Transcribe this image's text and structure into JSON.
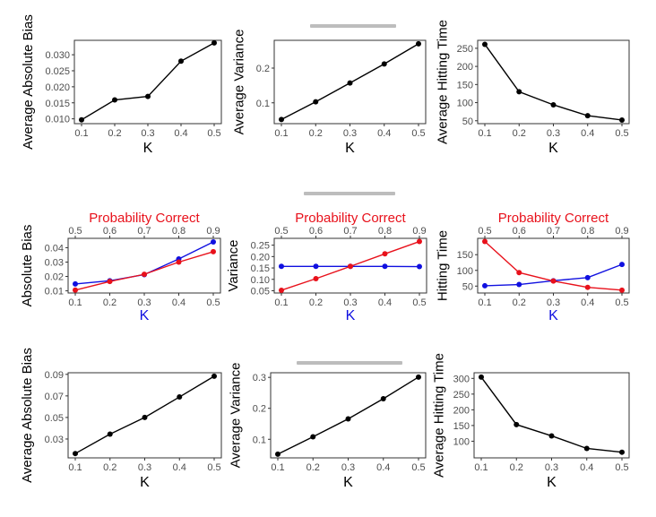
{
  "colors": {
    "black": "#000000",
    "red": "#e8111b",
    "blue": "#1010e0",
    "tick": "#4d4d4d",
    "frame": "#333333"
  },
  "chart_data": [
    {
      "id": "r1c1",
      "type": "line",
      "xlabel": "K",
      "ylabel": "Average Absolute Bias",
      "x": [
        0.1,
        0.2,
        0.3,
        0.4,
        0.5
      ],
      "xlim": [
        0.1,
        0.5
      ],
      "ylim": [
        0.0085,
        0.0345
      ],
      "yticks": [
        0.01,
        0.015,
        0.02,
        0.025,
        0.03
      ],
      "yticklabels": [
        "0.010",
        "0.015",
        "0.020",
        "0.025",
        "0.030"
      ],
      "series": [
        {
          "color": "#000000",
          "values": [
            0.0097,
            0.0159,
            0.017,
            0.028,
            0.0337
          ]
        }
      ]
    },
    {
      "id": "r1c2",
      "type": "line",
      "xlabel": "K",
      "ylabel": "Average Variance",
      "x": [
        0.1,
        0.2,
        0.3,
        0.4,
        0.5
      ],
      "xlim": [
        0.1,
        0.5
      ],
      "ylim": [
        0.04,
        0.28
      ],
      "yticks": [
        0.1,
        0.2
      ],
      "yticklabels": [
        "0.1",
        "0.2"
      ],
      "series": [
        {
          "color": "#000000",
          "values": [
            0.052,
            0.103,
            0.157,
            0.212,
            0.27
          ]
        }
      ]
    },
    {
      "id": "r1c3",
      "type": "line",
      "xlabel": "K",
      "ylabel": "Average Hitting Time",
      "x": [
        0.1,
        0.2,
        0.3,
        0.4,
        0.5
      ],
      "xlim": [
        0.1,
        0.5
      ],
      "ylim": [
        42,
        272
      ],
      "yticks": [
        50,
        100,
        150,
        200,
        250
      ],
      "yticklabels": [
        "50",
        "100",
        "150",
        "200",
        "250"
      ],
      "series": [
        {
          "color": "#000000",
          "values": [
            261,
            130,
            94,
            64,
            52
          ]
        }
      ]
    },
    {
      "id": "r2c1",
      "type": "line",
      "xlabel": "K",
      "ylabel": "Absolute Bias",
      "x2label": "Probability Correct",
      "x": [
        0.1,
        0.2,
        0.3,
        0.4,
        0.5
      ],
      "xlim": [
        0.1,
        0.5
      ],
      "x2ticks": [
        "0.5",
        "0.6",
        "0.7",
        "0.8",
        "0.9"
      ],
      "ylim": [
        0.0085,
        0.0465
      ],
      "yticks": [
        0.01,
        0.02,
        0.03,
        0.04
      ],
      "yticklabels": [
        "0.01",
        "0.02",
        "0.03",
        "0.04"
      ],
      "series": [
        {
          "color": "#1010e0",
          "values": [
            0.0148,
            0.017,
            0.0213,
            0.0322,
            0.044
          ]
        },
        {
          "color": "#e8111b",
          "values": [
            0.0105,
            0.0165,
            0.0215,
            0.03,
            0.0372
          ]
        }
      ]
    },
    {
      "id": "r2c2",
      "type": "line",
      "xlabel": "K",
      "ylabel": "Variance",
      "x2label": "Probability Correct",
      "x": [
        0.1,
        0.2,
        0.3,
        0.4,
        0.5
      ],
      "xlim": [
        0.1,
        0.5
      ],
      "x2ticks": [
        "0.5",
        "0.6",
        "0.7",
        "0.8",
        "0.9"
      ],
      "ylim": [
        0.04,
        0.28
      ],
      "yticks": [
        0.05,
        0.1,
        0.15,
        0.2,
        0.25
      ],
      "yticklabels": [
        "0.05",
        "0.10",
        "0.15",
        "0.20",
        "0.25"
      ],
      "series": [
        {
          "color": "#1010e0",
          "values": [
            0.157,
            0.157,
            0.157,
            0.157,
            0.156
          ]
        },
        {
          "color": "#e8111b",
          "values": [
            0.052,
            0.103,
            0.157,
            0.212,
            0.266
          ]
        }
      ]
    },
    {
      "id": "r2c3",
      "type": "line",
      "xlabel": "K",
      "ylabel": "Hitting Time",
      "x2label": "Probability Correct",
      "x": [
        0.1,
        0.2,
        0.3,
        0.4,
        0.5
      ],
      "xlim": [
        0.1,
        0.5
      ],
      "x2ticks": [
        "0.5",
        "0.6",
        "0.7",
        "0.8",
        "0.9"
      ],
      "ylim": [
        28,
        202
      ],
      "yticks": [
        50,
        100,
        150
      ],
      "yticklabels": [
        "50",
        "100",
        "150"
      ],
      "series": [
        {
          "color": "#1010e0",
          "values": [
            51,
            55,
            67,
            77,
            119
          ]
        },
        {
          "color": "#e8111b",
          "values": [
            192,
            93,
            66,
            46,
            37
          ]
        }
      ]
    },
    {
      "id": "r3c1",
      "type": "line",
      "xlabel": "K",
      "ylabel": "Average Absolute Bias",
      "x": [
        0.1,
        0.2,
        0.3,
        0.4,
        0.5
      ],
      "xlim": [
        0.1,
        0.5
      ],
      "ylim": [
        0.0125,
        0.0915
      ],
      "yticks": [
        0.03,
        0.05,
        0.07,
        0.09
      ],
      "yticklabels": [
        "0.03",
        "0.05",
        "0.07",
        "0.09"
      ],
      "series": [
        {
          "color": "#000000",
          "values": [
            0.0165,
            0.0345,
            0.05,
            0.069,
            0.0883
          ]
        }
      ]
    },
    {
      "id": "r3c2",
      "type": "line",
      "xlabel": "K",
      "ylabel": "Average Variance",
      "x": [
        0.1,
        0.2,
        0.3,
        0.4,
        0.5
      ],
      "xlim": [
        0.1,
        0.5
      ],
      "ylim": [
        0.04,
        0.315
      ],
      "yticks": [
        0.1,
        0.2,
        0.3
      ],
      "yticklabels": [
        "0.1",
        "0.2",
        "0.3"
      ],
      "series": [
        {
          "color": "#000000",
          "values": [
            0.052,
            0.108,
            0.166,
            0.231,
            0.301
          ]
        }
      ]
    },
    {
      "id": "r3c3",
      "type": "line",
      "xlabel": "K",
      "ylabel": "Average Hitting Time",
      "x": [
        0.1,
        0.2,
        0.3,
        0.4,
        0.5
      ],
      "xlim": [
        0.1,
        0.5
      ],
      "ylim": [
        47,
        318
      ],
      "yticks": [
        100,
        150,
        200,
        250,
        300
      ],
      "yticklabels": [
        "100",
        "150",
        "200",
        "250",
        "300"
      ],
      "series": [
        {
          "color": "#000000",
          "values": [
            304,
            153,
            117,
            77,
            65
          ]
        }
      ]
    }
  ]
}
